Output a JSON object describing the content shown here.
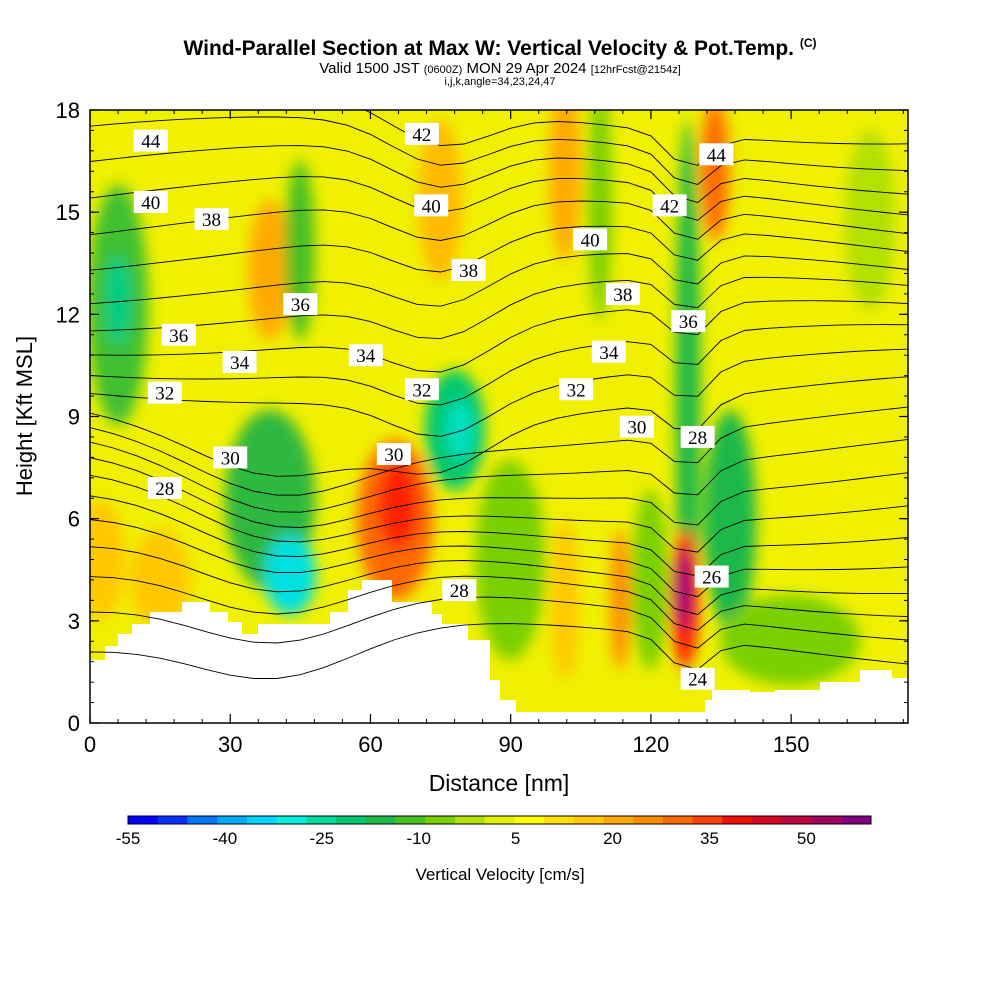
{
  "header": {
    "title": "Wind-Parallel Section at Max W: Vertical Velocity & Pot.Temp.",
    "title_mark": "(C)",
    "subtitle_valid": "Valid 1500 JST",
    "subtitle_zulu": "(0600Z)",
    "subtitle_date": "MON 29 Apr 2024",
    "subtitle_fcst": "[12hrFcst@2154z]",
    "indices": "i,j,k,angle=34,23,24,47"
  },
  "chart_data": {
    "type": "heatmap",
    "xlabel": "Distance [nm]",
    "ylabel": "Height [Kft MSL]",
    "xlim": [
      0,
      175
    ],
    "ylim": [
      0,
      18
    ],
    "x_ticks": [
      0,
      30,
      60,
      90,
      120,
      150
    ],
    "y_ticks": [
      0,
      3,
      6,
      9,
      12,
      15,
      18
    ],
    "colorbar": {
      "label": "Vertical Velocity [cm/s]",
      "tick_labels": [
        -55,
        -40,
        -25,
        -10,
        5,
        20,
        35,
        50
      ],
      "range": [
        -55,
        60
      ],
      "colors": [
        "#0000ff",
        "#0033ff",
        "#0077ff",
        "#00aaff",
        "#00d5ff",
        "#00f0e0",
        "#00dca0",
        "#00c870",
        "#1eb84a",
        "#48c020",
        "#7ad000",
        "#b2e000",
        "#e0f000",
        "#ffff00",
        "#ffe000",
        "#ffc800",
        "#ffaa00",
        "#ff8c00",
        "#ff6a00",
        "#ff4000",
        "#f01000",
        "#d80020",
        "#c00040",
        "#a00060",
        "#800080"
      ]
    },
    "contour_labels": [
      {
        "value": "44",
        "x": 13,
        "y": 17.1
      },
      {
        "value": "42",
        "x": 71,
        "y": 17.3
      },
      {
        "value": "44",
        "x": 134,
        "y": 16.7
      },
      {
        "value": "40",
        "x": 13,
        "y": 15.3
      },
      {
        "value": "38",
        "x": 26,
        "y": 14.8
      },
      {
        "value": "40",
        "x": 73,
        "y": 15.2
      },
      {
        "value": "42",
        "x": 124,
        "y": 15.2
      },
      {
        "value": "40",
        "x": 107,
        "y": 14.2
      },
      {
        "value": "38",
        "x": 81,
        "y": 13.3
      },
      {
        "value": "38",
        "x": 114,
        "y": 12.6
      },
      {
        "value": "36",
        "x": 45,
        "y": 12.3
      },
      {
        "value": "36",
        "x": 128,
        "y": 11.8
      },
      {
        "value": "36",
        "x": 19,
        "y": 11.4
      },
      {
        "value": "34",
        "x": 32,
        "y": 10.6
      },
      {
        "value": "34",
        "x": 59,
        "y": 10.8
      },
      {
        "value": "34",
        "x": 111,
        "y": 10.9
      },
      {
        "value": "32",
        "x": 16,
        "y": 9.7
      },
      {
        "value": "32",
        "x": 71,
        "y": 9.8
      },
      {
        "value": "32",
        "x": 104,
        "y": 9.8
      },
      {
        "value": "30",
        "x": 117,
        "y": 8.7
      },
      {
        "value": "28",
        "x": 130,
        "y": 8.4
      },
      {
        "value": "30",
        "x": 30,
        "y": 7.8
      },
      {
        "value": "30",
        "x": 65,
        "y": 7.9
      },
      {
        "value": "28",
        "x": 16,
        "y": 6.9
      },
      {
        "value": "28",
        "x": 79,
        "y": 3.9
      },
      {
        "value": "26",
        "x": 133,
        "y": 4.3
      },
      {
        "value": "24",
        "x": 130,
        "y": 1.3
      }
    ]
  }
}
